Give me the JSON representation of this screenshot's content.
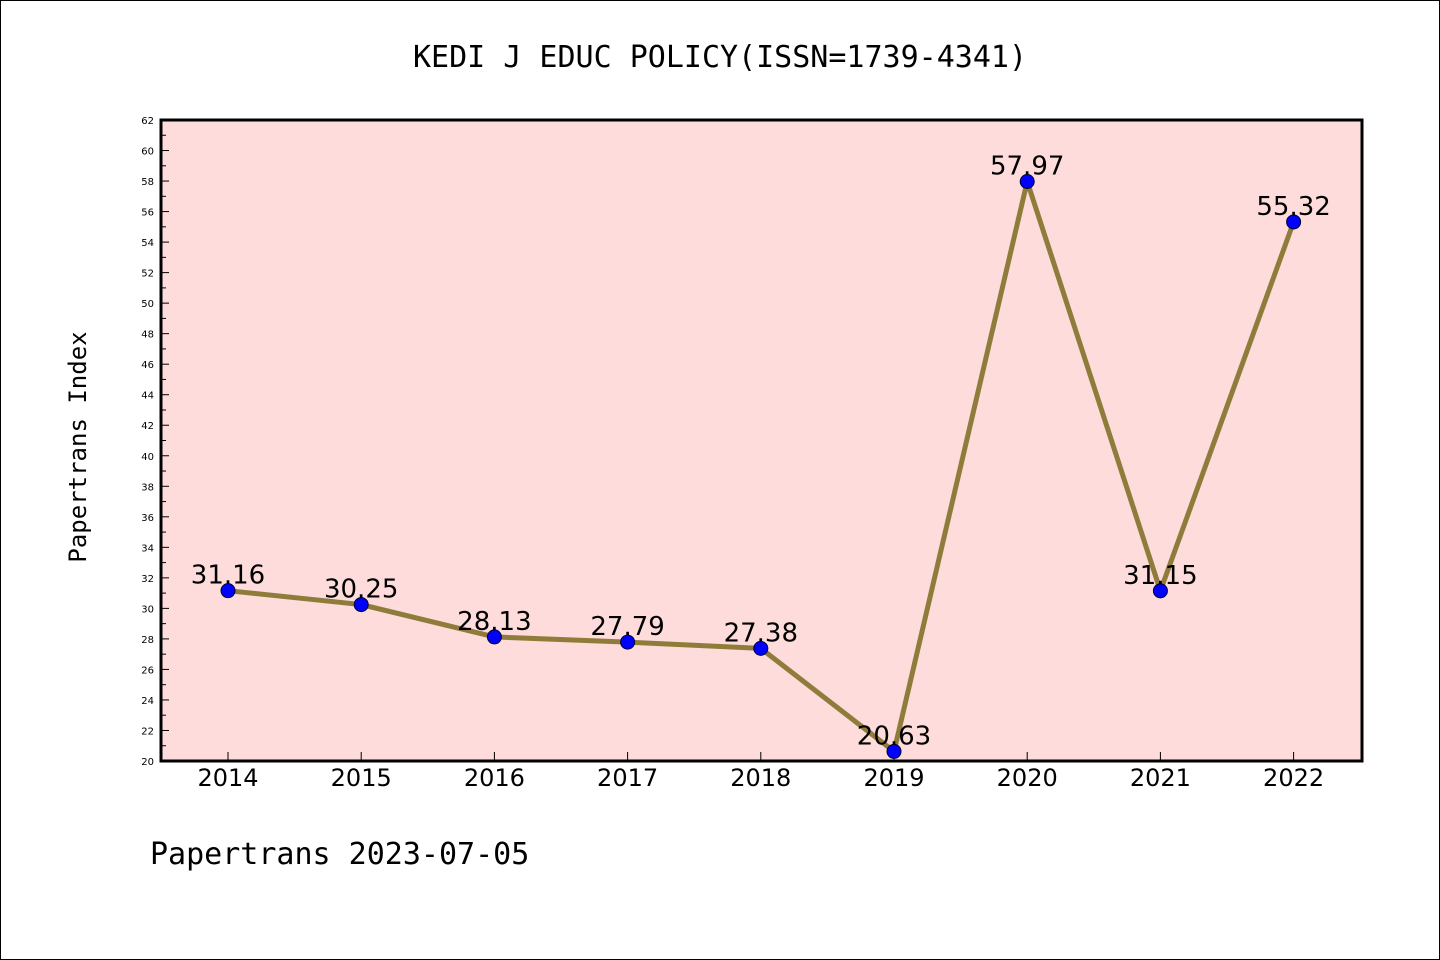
{
  "chart_data": {
    "type": "line",
    "title": "KEDI J EDUC POLICY(ISSN=1739-4341)",
    "xlabel": "",
    "ylabel": "Papertrans Index",
    "categories": [
      "2014",
      "2015",
      "2016",
      "2017",
      "2018",
      "2019",
      "2020",
      "2021",
      "2022"
    ],
    "series": [
      {
        "values": [
          31.16,
          30.25,
          28.13,
          27.79,
          27.38,
          20.63,
          57.97,
          31.15,
          55.32
        ]
      }
    ],
    "data_labels": [
      "31.16",
      "30.25",
      "28.13",
      "27.79",
      "27.38",
      "20.63",
      "57.97",
      "31.15",
      "55.32"
    ],
    "ylim": [
      20,
      62
    ],
    "y_ticks": [
      "20",
      "22",
      "24",
      "26",
      "28",
      "30",
      "32",
      "34",
      "36",
      "38",
      "40",
      "42",
      "44",
      "46",
      "48",
      "50",
      "52",
      "54",
      "56",
      "58",
      "60",
      "62"
    ],
    "grid": false,
    "legend": "none",
    "colors": {
      "plot_background": "#fddcdb",
      "line": "#8f7c3b",
      "marker": "#0000ff"
    }
  },
  "footer": "Papertrans 2023-07-05"
}
